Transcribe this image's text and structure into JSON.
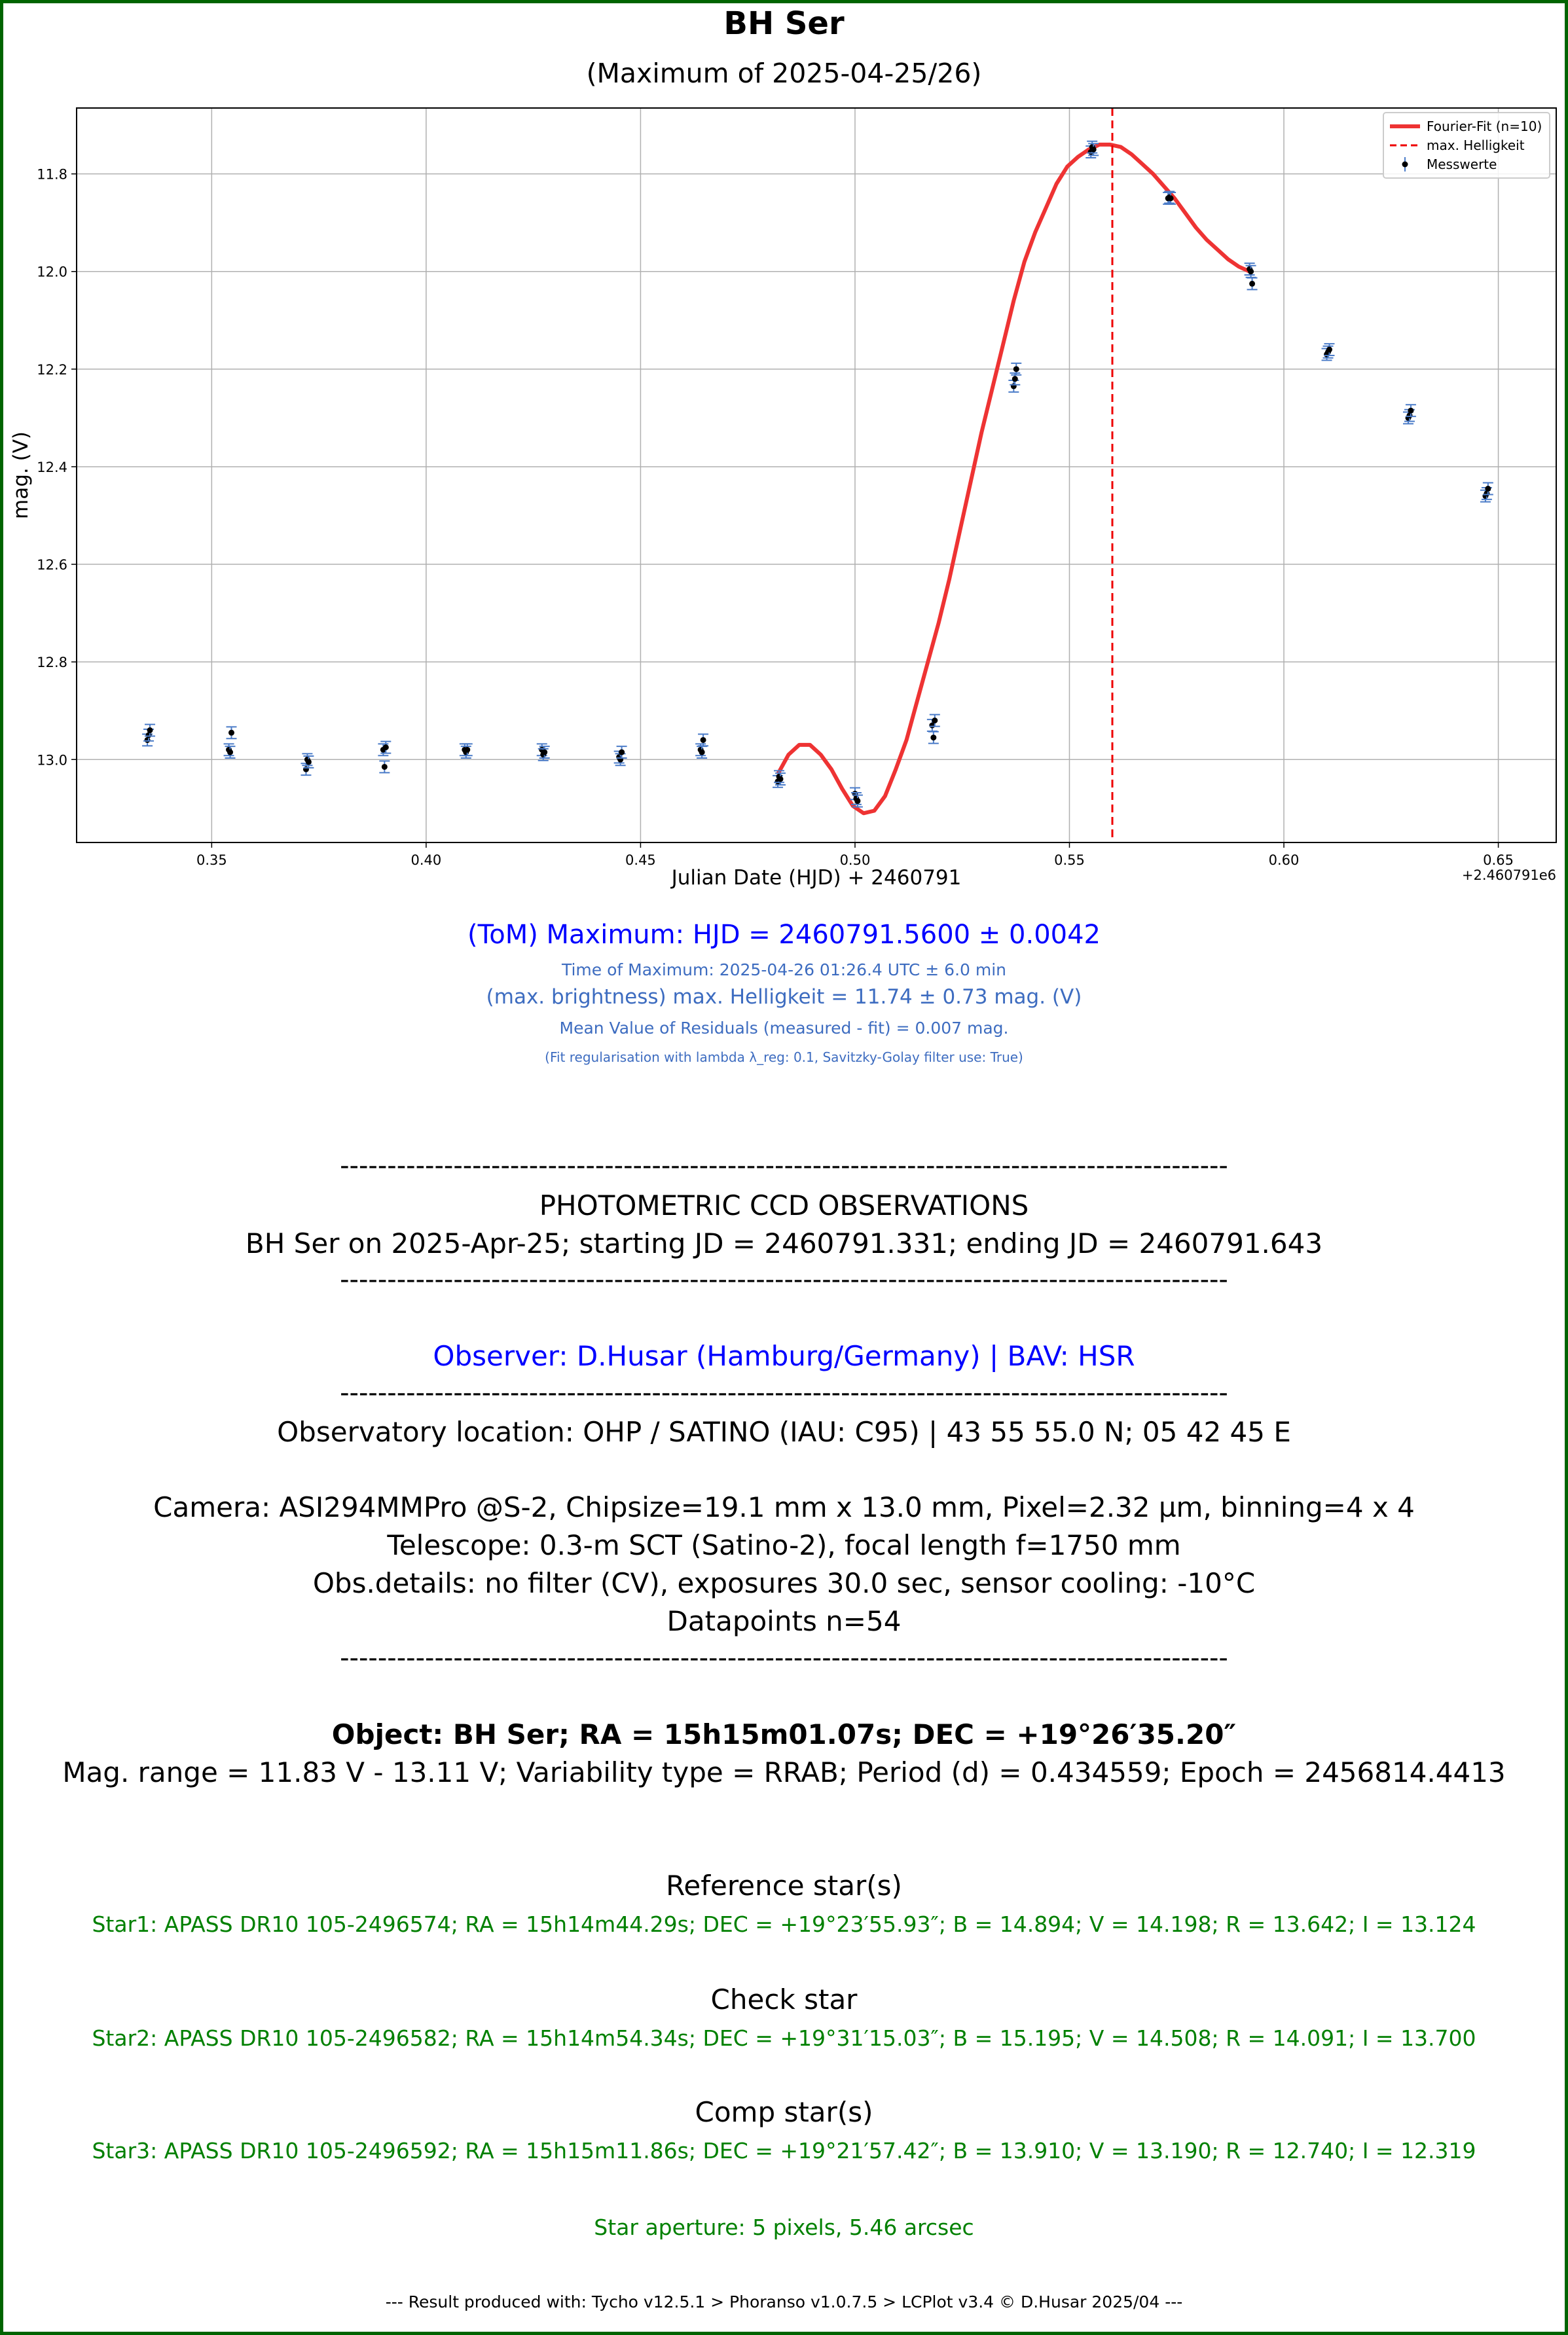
{
  "chart_data": {
    "type": "scatter",
    "title": "BH Ser",
    "subtitle": "(Maximum of 2025-04-25/26)",
    "xlabel": "Julian Date (HJD) + 2460791",
    "ylabel": "mag. (V)",
    "x_offset_label": "+2.460791e6",
    "xlim": [
      0.3185,
      0.6635
    ],
    "ylim": [
      13.17,
      11.665
    ],
    "x_ticks": [
      0.35,
      0.4,
      0.45,
      0.5,
      0.55,
      0.6,
      0.65
    ],
    "x_tick_labels": [
      "0.35",
      "0.40",
      "0.45",
      "0.50",
      "0.55",
      "0.60",
      "0.65"
    ],
    "y_ticks": [
      11.8,
      12.0,
      12.2,
      12.4,
      12.6,
      12.8,
      13.0
    ],
    "y_tick_labels": [
      "11.8",
      "12.0",
      "12.2",
      "12.4",
      "12.6",
      "12.8",
      "13.0"
    ],
    "grid": true,
    "legend_position": "top-right",
    "legend": [
      "Fourier-Fit (n=10)",
      "max. Helligkeit",
      "Messwerte"
    ],
    "colors": {
      "fit": "#ee3333",
      "max_line": "#ee0000",
      "points": "#000000",
      "errorbars": "#4a7bc8"
    },
    "series": [
      {
        "name": "Messwerte",
        "x": [
          0.335,
          0.3353,
          0.3356,
          0.354,
          0.3543,
          0.3546,
          0.372,
          0.3723,
          0.3726,
          0.39,
          0.3903,
          0.3906,
          0.409,
          0.4093,
          0.4096,
          0.427,
          0.4273,
          0.4276,
          0.445,
          0.4453,
          0.4456,
          0.464,
          0.4643,
          0.4646,
          0.482,
          0.4823,
          0.4826,
          0.5,
          0.5003,
          0.5006,
          0.518,
          0.5183,
          0.5186,
          0.537,
          0.5373,
          0.5376,
          0.555,
          0.5553,
          0.5556,
          0.573,
          0.5733,
          0.5736,
          0.592,
          0.5923,
          0.5926,
          0.61,
          0.6103,
          0.6106,
          0.629,
          0.6293,
          0.6296,
          0.647,
          0.6473,
          0.6476
        ],
        "y": [
          12.96,
          12.95,
          12.94,
          12.98,
          12.985,
          12.945,
          13.02,
          13.0,
          13.005,
          12.98,
          13.015,
          12.975,
          12.98,
          12.985,
          12.98,
          12.98,
          12.99,
          12.985,
          12.995,
          13.0,
          12.985,
          12.98,
          12.985,
          12.96,
          13.045,
          13.035,
          13.04,
          13.07,
          13.08,
          13.085,
          12.93,
          12.955,
          12.92,
          12.235,
          12.22,
          12.2,
          11.755,
          11.745,
          11.75,
          11.85,
          11.848,
          11.85,
          11.995,
          12.0,
          12.025,
          12.17,
          12.165,
          12.16,
          12.3,
          12.295,
          12.285,
          12.46,
          12.455,
          12.445
        ],
        "error": 0.012
      },
      {
        "name": "Fourier-Fit (n=10)",
        "x": [
          0.482,
          0.4845,
          0.487,
          0.4895,
          0.492,
          0.4945,
          0.497,
          0.4995,
          0.502,
          0.5045,
          0.507,
          0.5095,
          0.512,
          0.5145,
          0.517,
          0.5195,
          0.522,
          0.5245,
          0.527,
          0.5295,
          0.532,
          0.5345,
          0.537,
          0.5395,
          0.542,
          0.5445,
          0.547,
          0.5495,
          0.552,
          0.5545,
          0.557,
          0.5595,
          0.562,
          0.5645,
          0.567,
          0.5695,
          0.572,
          0.5745,
          0.577,
          0.5795,
          0.582,
          0.5845,
          0.587,
          0.5895,
          0.592
        ],
        "y": [
          13.03,
          12.99,
          12.97,
          12.97,
          12.99,
          13.02,
          13.06,
          13.095,
          13.11,
          13.105,
          13.075,
          13.02,
          12.96,
          12.88,
          12.8,
          12.72,
          12.63,
          12.53,
          12.43,
          12.33,
          12.24,
          12.15,
          12.06,
          11.98,
          11.92,
          11.87,
          11.82,
          11.785,
          11.765,
          11.75,
          11.74,
          11.74,
          11.745,
          11.76,
          11.78,
          11.8,
          11.825,
          11.85,
          11.88,
          11.91,
          11.935,
          11.955,
          11.975,
          11.99,
          12.0
        ]
      }
    ],
    "max_line_x": 0.56
  },
  "result": {
    "tom": "(ToM) Maximum: HJD = 2460791.5600 ± 0.0042",
    "time": "Time of Maximum:   2025-04-26   01:26.4 UTC ± 6.0 min",
    "brightness": "(max. brightness) max. Helligkeit = 11.74 ± 0.73 mag. (V)",
    "residuals": "Mean Value of Residuals (measured - fit) = 0.007 mag.",
    "regularisation": "(Fit regularisation with lambda λ_reg: 0.1, Savitzky-Golay filter use: True)"
  },
  "report": {
    "divider": "----------------------------------------------------------------------------------------------",
    "heading": "PHOTOMETRIC CCD OBSERVATIONS",
    "range": "BH Ser on 2025-Apr-25; starting JD = 2460791.331; ending JD = 2460791.643",
    "observer": "Observer: D.Husar (Hamburg/Germany) | BAV: HSR",
    "location": "Observatory location: OHP / SATINO (IAU: C95) | 43 55 55.0 N; 05 42 45 E",
    "camera": "Camera: ASI294MMPro @S-2, Chipsize=19.1 mm x 13.0 mm, Pixel=2.32 µm, binning=4 x 4",
    "telescope": "Telescope: 0.3-m SCT (Satino-2), focal length f=1750 mm",
    "obs_details": "Obs.details: no filter (CV), exposures 30.0 sec, sensor cooling: -10°C",
    "datapoints": "Datapoints n=54",
    "object": "Object: BH Ser; RA = 15h15m01.07s; DEC = +19°26′35.20″",
    "mag_range": "Mag. range = 11.83 V - 13.11 V; Variability type = RRAB; Period (d) = 0.434559; Epoch = 2456814.4413",
    "ref_heading": "Reference star(s)",
    "star1": "Star1: APASS DR10 105-2496574; RA = 15h14m44.29s; DEC = +19°23′55.93″; B = 14.894; V = 14.198; R = 13.642; I = 13.124",
    "check_heading": "Check star",
    "star2": "Star2: APASS DR10 105-2496582; RA = 15h14m54.34s; DEC = +19°31′15.03″; B = 15.195; V = 14.508; R = 14.091; I = 13.700",
    "comp_heading": "Comp star(s)",
    "star3": "Star3: APASS DR10 105-2496592; RA = 15h15m11.86s; DEC = +19°21′57.42″; B = 13.910; V = 13.190; R = 12.740; I = 12.319",
    "aperture": "Star aperture: 5 pixels, 5.46 arcsec",
    "footer": "---  Result produced with: Tycho v12.5.1 > Phoranso v1.0.7.5 > LCPlot v3.4 © D.Husar 2025/04  ---"
  }
}
